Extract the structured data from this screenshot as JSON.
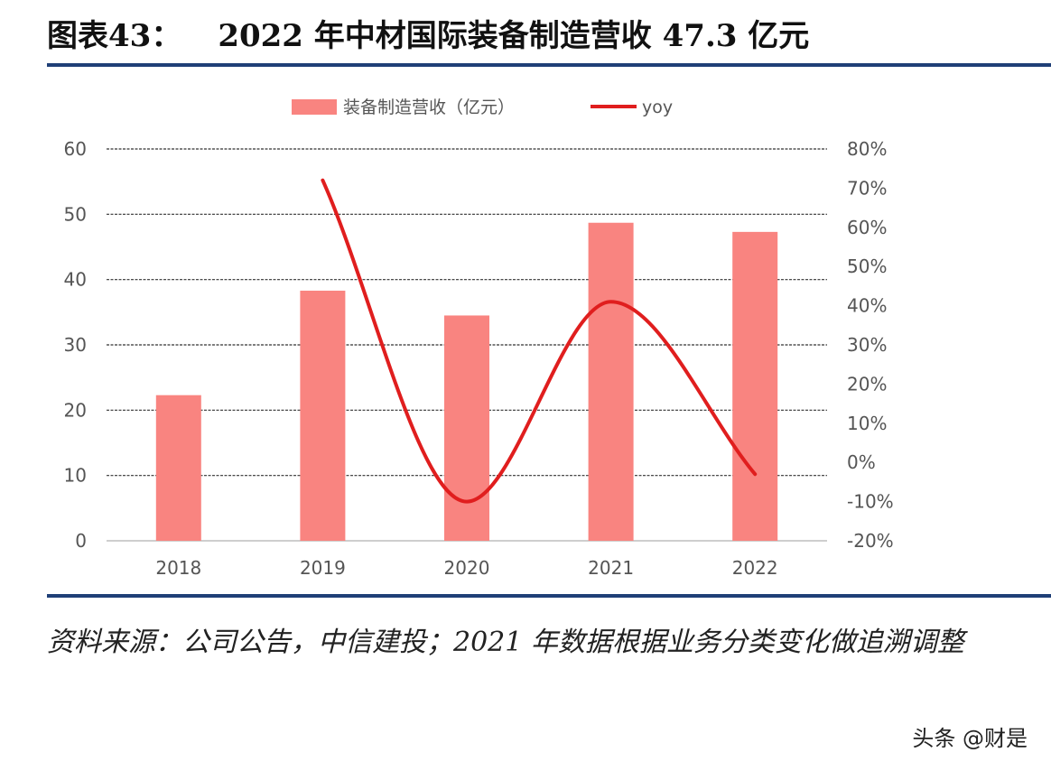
{
  "header": {
    "label": "图表43：",
    "title": "2022 年中材国际装备制造营收 47.3 亿元"
  },
  "footer": {
    "source": "资料来源：公司公告，中信建投；2021 年数据根据业务分类变化做追溯调整",
    "watermark": "头条 @财是"
  },
  "colors": {
    "bar": "#f98480",
    "line": "#e01e1e",
    "grid": "#333333",
    "rule": "#1f3f77"
  },
  "chart_data": {
    "type": "bar",
    "categories": [
      "2018",
      "2019",
      "2020",
      "2021",
      "2022"
    ],
    "series": [
      {
        "name": "装备制造营收（亿元）",
        "type": "bar",
        "axis": "left",
        "values": [
          22.3,
          38.3,
          34.5,
          48.7,
          47.3
        ]
      },
      {
        "name": "yoy",
        "type": "line",
        "axis": "right",
        "values": [
          null,
          72,
          -10,
          41,
          -3
        ]
      }
    ],
    "y_left": {
      "min": 0,
      "max": 60,
      "ticks": [
        0,
        10,
        20,
        30,
        40,
        50,
        60
      ]
    },
    "y_right": {
      "min": -20,
      "max": 80,
      "ticks": [
        -20,
        -10,
        0,
        10,
        20,
        30,
        40,
        50,
        60,
        70,
        80
      ],
      "tick_labels": [
        "-20%",
        "-10%",
        "0%",
        "10%",
        "20%",
        "30%",
        "40%",
        "50%",
        "60%",
        "70%",
        "80%"
      ]
    },
    "grid": true,
    "legend": "top-center"
  }
}
